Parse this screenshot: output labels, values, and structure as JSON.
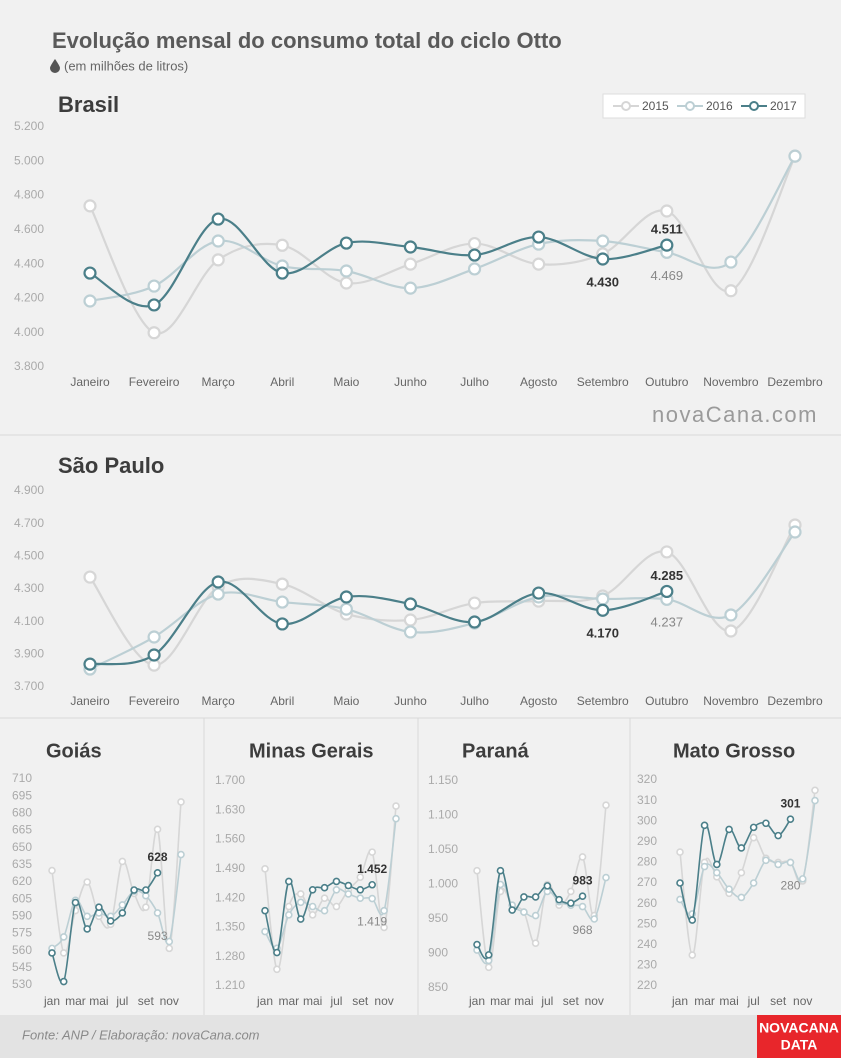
{
  "title": "Evolução mensal do consumo total do ciclo Otto",
  "subtitle": "(em milhões de litros)",
  "watermark": "novaCana.com",
  "source": "Fonte: ANP  / Elaboração: novaCana.com",
  "logo": [
    "NOVACANA",
    "DATA"
  ],
  "chart_data": [
    {
      "type": "line",
      "title": "Brasil",
      "legend": "top-right",
      "grid": false,
      "categories": [
        "Janeiro",
        "Fevereiro",
        "Março",
        "Abril",
        "Maio",
        "Junho",
        "Julho",
        "Agosto",
        "Setembro",
        "Outubro",
        "Novembro",
        "Dezembro"
      ],
      "ylim": [
        3800,
        5200
      ],
      "yticks": [
        {
          "value": 3800,
          "label": "3.800"
        },
        {
          "value": 4000,
          "label": "4.000"
        },
        {
          "value": 4200,
          "label": "4.200"
        },
        {
          "value": 4400,
          "label": "4.400"
        },
        {
          "value": 4600,
          "label": "4.600"
        },
        {
          "value": 4800,
          "label": "4.800"
        },
        {
          "value": 5000,
          "label": "5.000"
        },
        {
          "value": 5200,
          "label": "5.200"
        }
      ],
      "series": [
        {
          "name": "2015",
          "color": "#d6d6d6",
          "values": [
            4740,
            4000,
            4425,
            4510,
            4290,
            4400,
            4520,
            4400,
            4460,
            4710,
            4245,
            5030
          ]
        },
        {
          "name": "2016",
          "color": "#bccfd4",
          "values": [
            4185,
            4272,
            4535,
            4389,
            4360,
            4260,
            4372,
            4517,
            4535,
            4469,
            4412,
            5030
          ],
          "value_labels": [
            null,
            null,
            null,
            null,
            null,
            null,
            null,
            null,
            null,
            "4.469",
            null,
            null
          ]
        },
        {
          "name": "2017",
          "color": "#4b7f89",
          "values": [
            4348,
            4162,
            4663,
            4348,
            4523,
            4500,
            4453,
            4558,
            4430,
            4511,
            null,
            null
          ],
          "value_labels": [
            null,
            null,
            null,
            null,
            null,
            null,
            null,
            null,
            "4.430",
            "4.511",
            null,
            null
          ]
        }
      ]
    },
    {
      "type": "line",
      "title": "São Paulo",
      "grid": false,
      "categories": [
        "Janeiro",
        "Fevereiro",
        "Março",
        "Abril",
        "Maio",
        "Junho",
        "Julho",
        "Agosto",
        "Setembro",
        "Outubro",
        "Novembro",
        "Dezembro"
      ],
      "ylim": [
        3700,
        4900
      ],
      "yticks": [
        {
          "value": 3700,
          "label": "3.700"
        },
        {
          "value": 3900,
          "label": "3.900"
        },
        {
          "value": 4100,
          "label": "4.100"
        },
        {
          "value": 4300,
          "label": "4.300"
        },
        {
          "value": 4500,
          "label": "4.500"
        },
        {
          "value": 4700,
          "label": "4.700"
        },
        {
          "value": 4900,
          "label": "4.900"
        }
      ],
      "series": [
        {
          "color": "#d6d6d6",
          "values": [
            4373,
            3834,
            4312,
            4330,
            4147,
            4110,
            4214,
            4226,
            4257,
            4527,
            4043,
            4692
          ]
        },
        {
          "color": "#bccfd4",
          "values": [
            3810,
            4006,
            4269,
            4220,
            4177,
            4037,
            4092,
            4251,
            4239,
            4237,
            4141,
            4649
          ],
          "value_labels": [
            null,
            null,
            null,
            null,
            null,
            null,
            null,
            null,
            null,
            "4.237",
            null,
            null
          ]
        },
        {
          "color": "#4b7f89",
          "values": [
            3840,
            3896,
            4343,
            4086,
            4251,
            4208,
            4098,
            4275,
            4170,
            4285,
            null,
            null
          ],
          "value_labels": [
            null,
            null,
            null,
            null,
            null,
            null,
            null,
            null,
            "4.170",
            "4.285",
            null,
            null
          ]
        }
      ]
    },
    {
      "type": "line",
      "title": "Goiás",
      "grid": false,
      "categories": [
        "jan",
        null,
        "mar",
        null,
        "mai",
        null,
        "jul",
        null,
        "set",
        null,
        "nov",
        null
      ],
      "ylim": [
        530,
        710
      ],
      "yticks": [
        530,
        545,
        560,
        575,
        590,
        605,
        620,
        635,
        650,
        665,
        680,
        695,
        710
      ],
      "series": [
        {
          "color": "#d6d6d6",
          "values": [
            630,
            558,
            595,
            620,
            590,
            583,
            638,
            610,
            598,
            666,
            562,
            690
          ]
        },
        {
          "color": "#bccfd4",
          "values": [
            562,
            572,
            604,
            590,
            593,
            590,
            600,
            612,
            608,
            593,
            568,
            644
          ],
          "value_labels": [
            null,
            null,
            null,
            null,
            null,
            null,
            null,
            null,
            null,
            "593",
            null,
            null
          ]
        },
        {
          "color": "#4b7f89",
          "values": [
            558,
            533,
            602,
            579,
            598,
            586,
            593,
            613,
            613,
            628,
            null,
            null
          ],
          "value_labels": [
            null,
            null,
            null,
            null,
            null,
            null,
            null,
            null,
            null,
            "628",
            null,
            null
          ]
        }
      ]
    },
    {
      "type": "line",
      "title": "Minas Gerais",
      "grid": false,
      "categories": [
        "jan",
        null,
        "mar",
        null,
        "mai",
        null,
        "jul",
        null,
        "set",
        null,
        "nov",
        null
      ],
      "ylim": [
        1210,
        1700
      ],
      "yticks": [
        {
          "value": 1210,
          "label": "1.210"
        },
        {
          "value": 1280,
          "label": "1.280"
        },
        {
          "value": 1350,
          "label": "1.350"
        },
        {
          "value": 1420,
          "label": "1.420"
        },
        {
          "value": 1490,
          "label": "1.490"
        },
        {
          "value": 1560,
          "label": "1.560"
        },
        {
          "value": 1630,
          "label": "1.630"
        },
        {
          "value": 1700,
          "label": "1.700"
        }
      ],
      "series": [
        {
          "color": "#d6d6d6",
          "values": [
            1490,
            1250,
            1400,
            1430,
            1380,
            1420,
            1400,
            1440,
            1470,
            1530,
            1350,
            1640
          ]
        },
        {
          "color": "#bccfd4",
          "values": [
            1340,
            1300,
            1380,
            1410,
            1400,
            1390,
            1440,
            1430,
            1420,
            1419,
            1390,
            1610
          ],
          "value_labels": [
            null,
            null,
            null,
            null,
            null,
            null,
            null,
            null,
            null,
            "1.419",
            null,
            null
          ]
        },
        {
          "color": "#4b7f89",
          "values": [
            1390,
            1290,
            1460,
            1370,
            1440,
            1445,
            1460,
            1450,
            1440,
            1452,
            null,
            null
          ],
          "value_labels": [
            null,
            null,
            null,
            null,
            null,
            null,
            null,
            null,
            null,
            "1.452",
            null,
            null
          ]
        }
      ]
    },
    {
      "type": "line",
      "title": "Paraná",
      "grid": false,
      "categories": [
        "jan",
        null,
        "mar",
        null,
        "mai",
        null,
        "jul",
        null,
        "set",
        null,
        "nov",
        null
      ],
      "ylim": [
        850,
        1150
      ],
      "yticks": [
        850,
        900,
        950,
        {
          "value": 1000,
          "label": "1.000"
        },
        {
          "value": 1050,
          "label": "1.050"
        },
        {
          "value": 1100,
          "label": "1.100"
        },
        {
          "value": 1150,
          "label": "1.150"
        }
      ],
      "series": [
        {
          "color": "#d6d6d6",
          "values": [
            1020,
            880,
            990,
            970,
            960,
            915,
            1000,
            970,
            990,
            1040,
            955,
            1115
          ]
        },
        {
          "color": "#bccfd4",
          "values": [
            905,
            890,
            1000,
            970,
            960,
            955,
            990,
            975,
            970,
            968,
            950,
            1010
          ],
          "value_labels": [
            null,
            null,
            null,
            null,
            null,
            null,
            null,
            null,
            null,
            "968",
            null,
            null
          ]
        },
        {
          "color": "#4b7f89",
          "values": [
            913,
            898,
            1020,
            963,
            982,
            982,
            998,
            978,
            973,
            983,
            null,
            null
          ],
          "value_labels": [
            null,
            null,
            null,
            null,
            null,
            null,
            null,
            null,
            null,
            "983",
            null,
            null
          ]
        }
      ]
    },
    {
      "type": "line",
      "title": "Mato Grosso",
      "grid": false,
      "categories": [
        "jan",
        null,
        "mar",
        null,
        "mai",
        null,
        "jul",
        null,
        "set",
        null,
        "nov",
        null
      ],
      "ylim": [
        220,
        320
      ],
      "yticks": [
        220,
        230,
        240,
        250,
        260,
        270,
        280,
        290,
        300,
        310,
        320
      ],
      "series": [
        {
          "color": "#d6d6d6",
          "values": [
            285,
            235,
            280,
            273,
            265,
            275,
            292,
            282,
            280,
            280,
            271,
            315
          ]
        },
        {
          "color": "#bccfd4",
          "values": [
            262,
            255,
            278,
            275,
            267,
            263,
            270,
            281,
            279,
            280,
            272,
            310
          ],
          "value_labels": [
            null,
            null,
            null,
            null,
            null,
            null,
            null,
            null,
            null,
            "280",
            null,
            null
          ]
        },
        {
          "color": "#4b7f89",
          "values": [
            270,
            252,
            298,
            279,
            296,
            287,
            297,
            299,
            293,
            301,
            null,
            null
          ],
          "value_labels": [
            null,
            null,
            null,
            null,
            null,
            null,
            null,
            null,
            null,
            "301",
            null,
            null
          ]
        }
      ]
    }
  ]
}
